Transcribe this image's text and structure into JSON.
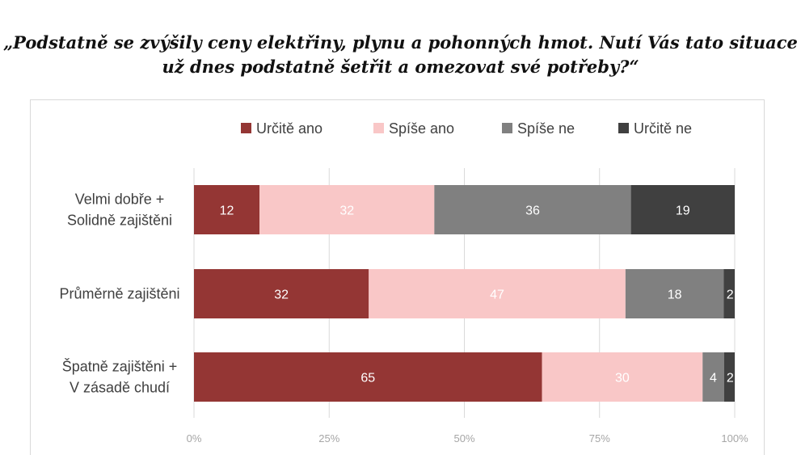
{
  "title_lines": [
    "„Podstatně se zvýšily ceny elektřiny, plynu a pohonných hmot. Nutí Vás tato situace",
    "už dnes podstatně šetřit a omezovat své potřeby?“"
  ],
  "chart_data": {
    "type": "bar",
    "orientation": "horizontal",
    "stacked": true,
    "percent_stacked": true,
    "categories": [
      [
        "Velmi dobře +",
        "Solidně zajištěni"
      ],
      [
        "Průměrně zajištěni"
      ],
      [
        "Špatně zajištěni +",
        "V zásadě chudí"
      ]
    ],
    "series": [
      {
        "name": "Určitě ano",
        "color": "#943634",
        "label_color": "#ffffff",
        "values": [
          12,
          32,
          65
        ]
      },
      {
        "name": "Spíše ano",
        "color": "#f9c7c7",
        "label_color": "#ffffff",
        "values": [
          32,
          47,
          30
        ]
      },
      {
        "name": "Spíše ne",
        "color": "#808080",
        "label_color": "#ffffff",
        "values": [
          36,
          18,
          4
        ]
      },
      {
        "name": "Určitě ne",
        "color": "#404040",
        "label_color": "#ffffff",
        "values": [
          19,
          2,
          2
        ]
      }
    ],
    "x_ticks": [
      "0%",
      "25%",
      "50%",
      "75%",
      "100%"
    ],
    "xlim": [
      0,
      100
    ],
    "grid": true,
    "legend_position": "top"
  }
}
